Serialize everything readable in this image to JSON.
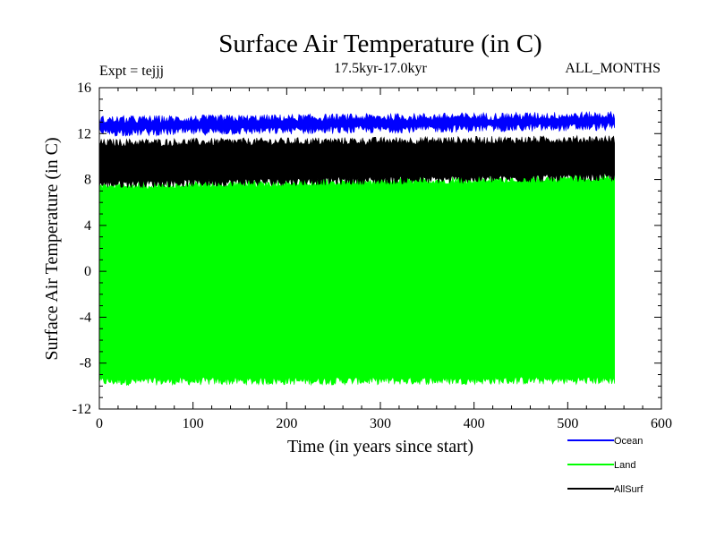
{
  "chart_data": {
    "type": "line",
    "title": "Surface Air Temperature (in C)",
    "subtitle": "17.5kyr-17.0kyr",
    "expt_label": "Expt = tejjj",
    "months_label": "ALL_MONTHS",
    "xlabel": "Time (in years since start)",
    "ylabel": "Surface Air Temperature (in C)",
    "xlim": [
      0,
      600
    ],
    "ylim": [
      -12,
      16
    ],
    "xticks": [
      0,
      100,
      200,
      300,
      400,
      500,
      600
    ],
    "yticks": [
      -12,
      -8,
      -4,
      0,
      4,
      8,
      12,
      16
    ],
    "n_years": 550,
    "series": [
      {
        "name": "Land",
        "color": "#00ff00",
        "upper_start": 7.4,
        "upper_end": 8.2,
        "lower_start": -9.6,
        "lower_end": -9.5
      },
      {
        "name": "AllSurf",
        "color": "#000000",
        "upper_start": 11.2,
        "upper_end": 11.5,
        "lower_start": 7.6,
        "lower_end": 8.2
      },
      {
        "name": "Ocean",
        "color": "#0000ff",
        "upper_start": 13.2,
        "upper_end": 13.6,
        "lower_start": 12.1,
        "lower_end": 12.6
      }
    ],
    "legend": [
      {
        "name": "Ocean",
        "color": "#0000ff"
      },
      {
        "name": "Land",
        "color": "#00ff00"
      },
      {
        "name": "AllSurf",
        "color": "#000000"
      }
    ],
    "legend_position": "bottom-right"
  }
}
